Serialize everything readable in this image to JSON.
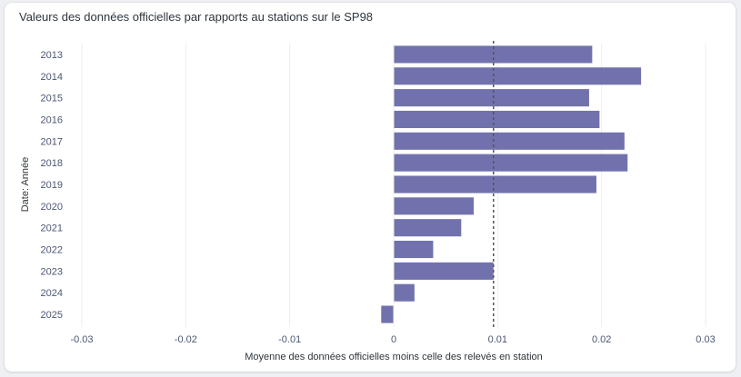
{
  "chart_data": {
    "type": "bar",
    "orientation": "horizontal",
    "title": "Valeurs des données officielles par rapports au stations sur le SP98",
    "xlabel": "Moyenne des données officielles moins celle des relevés en station",
    "ylabel": "Date: Année",
    "categories": [
      "2013",
      "2014",
      "2015",
      "2016",
      "2017",
      "2018",
      "2019",
      "2020",
      "2021",
      "2022",
      "2023",
      "2024",
      "2025"
    ],
    "values": [
      0.0191,
      0.0238,
      0.0188,
      0.0198,
      0.0222,
      0.0225,
      0.0195,
      0.0077,
      0.0065,
      0.0038,
      0.0096,
      0.002,
      -0.0012
    ],
    "xlim": [
      -0.03,
      0.03
    ],
    "xticks": [
      -0.03,
      -0.02,
      -0.01,
      0,
      0.01,
      0.02,
      0.03
    ],
    "xtick_labels": [
      "-0.03",
      "-0.02",
      "-0.01",
      "0",
      "0.01",
      "0.02",
      "0.03"
    ],
    "reference_line": 0.0096,
    "grid": "vertical",
    "bar_color": "#7172ad",
    "reference_line_color": "#555555"
  }
}
